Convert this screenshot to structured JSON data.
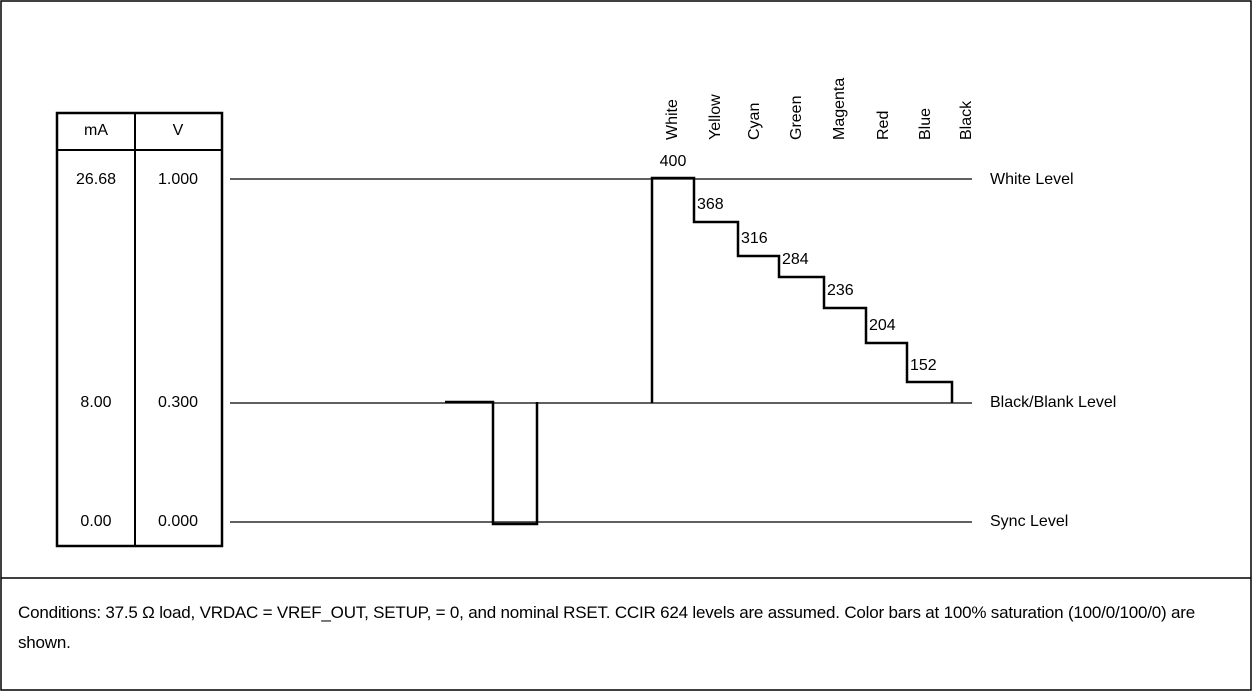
{
  "table": {
    "headers": [
      "mA",
      "V"
    ],
    "rows": [
      [
        "26.68",
        "1.000"
      ],
      [
        "8.00",
        "0.300"
      ],
      [
        "0.00",
        "0.000"
      ]
    ]
  },
  "levels": [
    "White Level",
    "Black/Blank Level",
    "Sync Level"
  ],
  "bars": [
    {
      "name": "White",
      "value": "400"
    },
    {
      "name": "Yellow",
      "value": "368"
    },
    {
      "name": "Cyan",
      "value": "316"
    },
    {
      "name": "Green",
      "value": "284"
    },
    {
      "name": "Magenta",
      "value": "236"
    },
    {
      "name": "Red",
      "value": "204"
    },
    {
      "name": "Blue",
      "value": "152"
    },
    {
      "name": "Black"
    }
  ],
  "note": "Conditions: 37.5 Ω load, VRDAC = VREF_OUT, SETUP, = 0, and nominal RSET. CCIR 624 levels are assumed. Color bars at 100% saturation (100/0/100/0) are shown."
}
